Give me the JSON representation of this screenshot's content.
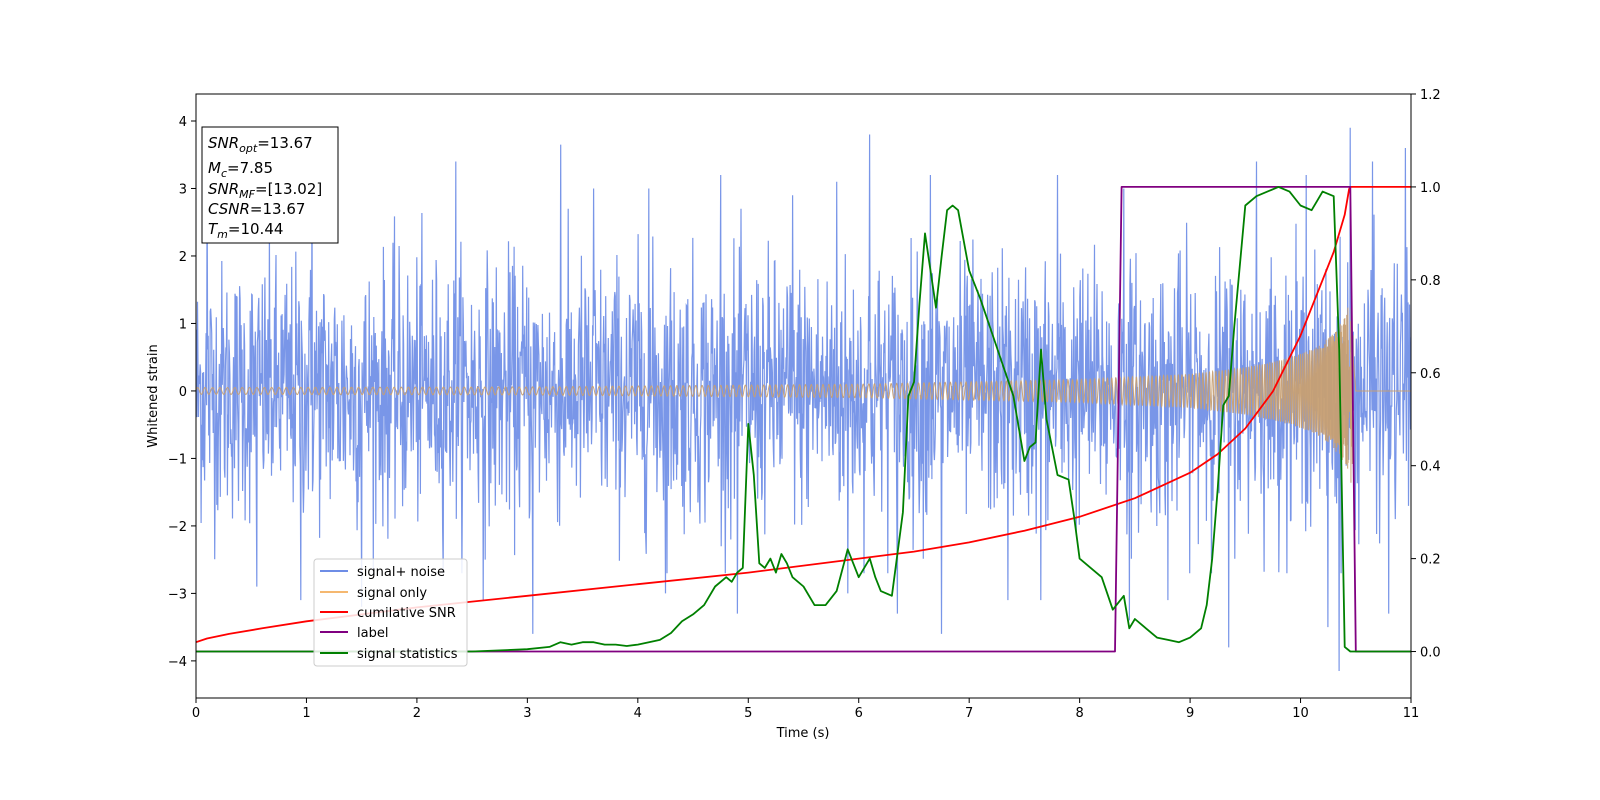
{
  "chart_data": {
    "type": "line",
    "xlabel": "Time (s)",
    "ylabel_left": "Whitened strain",
    "ylabel_right": "",
    "xlim": [
      0,
      11
    ],
    "ylim_left": [
      -4.55,
      4.4
    ],
    "ylim_right": [
      -0.1,
      1.2
    ],
    "x_ticks": [
      0,
      1,
      2,
      3,
      4,
      5,
      6,
      7,
      8,
      9,
      10,
      11
    ],
    "y_left_ticks": [
      -4,
      -3,
      -2,
      -1,
      0,
      1,
      2,
      3,
      4
    ],
    "y_right_ticks": [
      0.0,
      0.2,
      0.4,
      0.6,
      0.8,
      1.0,
      1.2
    ],
    "grid": false,
    "legend_position": "lower-left",
    "colors": {
      "signal_noise": "#6e8de6",
      "signal_only": "#c79f72",
      "cumulative_snr": "#ff0000",
      "label": "#800080",
      "signal_statistics": "#008000"
    },
    "info_box": [
      {
        "base": "SNR",
        "sub": "opt",
        "rest": "=13.67"
      },
      {
        "base": "M",
        "sub": "c",
        "rest": "=7.85"
      },
      {
        "base": "SNR",
        "sub": "MF",
        "rest": "=[13.02]"
      },
      {
        "base": "CSNR",
        "sub": "",
        "rest": "=13.67"
      },
      {
        "base": "T",
        "sub": "m",
        "rest": "=10.44"
      }
    ],
    "series": [
      {
        "name": "signal+ noise",
        "axis": "left",
        "color": "#6e8de6",
        "note_rendering": "dense whitened noise, roughly ±2 envelope with spikes up to ±3.9",
        "spikes": [
          [
            0.1,
            3.3
          ],
          [
            0.55,
            -2.9
          ],
          [
            0.95,
            -3.1
          ],
          [
            1.05,
            3.2
          ],
          [
            1.5,
            -3.2
          ],
          [
            2.35,
            3.4
          ],
          [
            2.6,
            -3.1
          ],
          [
            3.05,
            -3.6
          ],
          [
            3.3,
            3.65
          ],
          [
            3.6,
            3.0
          ],
          [
            4.1,
            3.0
          ],
          [
            4.25,
            -3.0
          ],
          [
            4.75,
            3.2
          ],
          [
            4.9,
            -3.3
          ],
          [
            5.4,
            2.9
          ],
          [
            5.8,
            3.1
          ],
          [
            5.9,
            -3.0
          ],
          [
            6.1,
            3.8
          ],
          [
            6.35,
            -3.3
          ],
          [
            6.65,
            3.2
          ],
          [
            6.75,
            -3.6
          ],
          [
            7.35,
            -3.1
          ],
          [
            7.65,
            -3.1
          ],
          [
            7.8,
            3.2
          ],
          [
            8.4,
            3.0
          ],
          [
            8.45,
            -3.4
          ],
          [
            8.8,
            -3.1
          ],
          [
            9.35,
            -3.8
          ],
          [
            9.6,
            3.4
          ],
          [
            10.05,
            3.2
          ],
          [
            10.25,
            -3.5
          ],
          [
            10.35,
            -4.15
          ],
          [
            10.45,
            3.9
          ],
          [
            10.65,
            3.4
          ],
          [
            10.8,
            -3.3
          ],
          [
            10.95,
            3.6
          ]
        ]
      },
      {
        "name": "signal only",
        "axis": "left",
        "color": "#c79f72",
        "envelope": [
          [
            0,
            0.05
          ],
          [
            3,
            0.06
          ],
          [
            6,
            0.1
          ],
          [
            8,
            0.17
          ],
          [
            9,
            0.25
          ],
          [
            9.5,
            0.35
          ],
          [
            9.8,
            0.45
          ],
          [
            10.0,
            0.55
          ],
          [
            10.15,
            0.65
          ],
          [
            10.3,
            0.85
          ],
          [
            10.4,
            1.1
          ],
          [
            10.46,
            1.4
          ],
          [
            10.5,
            0.0
          ],
          [
            11,
            0.0
          ]
        ]
      },
      {
        "name": "cumilative SNR",
        "axis": "right",
        "color": "#ff0000",
        "x": [
          0,
          0.1,
          0.3,
          0.6,
          1,
          1.5,
          2,
          3,
          4,
          5,
          6,
          6.5,
          7,
          7.5,
          8,
          8.5,
          9,
          9.25,
          9.5,
          9.75,
          10,
          10.15,
          10.3,
          10.4,
          10.44,
          10.45,
          11
        ],
        "y": [
          0.02,
          0.028,
          0.038,
          0.05,
          0.065,
          0.08,
          0.095,
          0.12,
          0.145,
          0.17,
          0.2,
          0.215,
          0.235,
          0.26,
          0.29,
          0.33,
          0.385,
          0.425,
          0.48,
          0.56,
          0.68,
          0.77,
          0.86,
          0.94,
          0.995,
          1.0,
          1.0
        ]
      },
      {
        "name": "label",
        "axis": "right",
        "color": "#800080",
        "x": [
          0,
          8.32,
          8.38,
          10.45,
          10.5,
          11
        ],
        "y": [
          0,
          0,
          1,
          1,
          0,
          0
        ]
      },
      {
        "name": "signal statistics",
        "axis": "right",
        "color": "#008000",
        "x": [
          0,
          1,
          2,
          2.5,
          3,
          3.2,
          3.3,
          3.4,
          3.5,
          3.6,
          3.7,
          3.8,
          3.9,
          4.0,
          4.1,
          4.2,
          4.3,
          4.4,
          4.5,
          4.6,
          4.7,
          4.8,
          4.85,
          4.9,
          4.95,
          5.0,
          5.05,
          5.1,
          5.15,
          5.2,
          5.25,
          5.3,
          5.35,
          5.4,
          5.5,
          5.6,
          5.7,
          5.8,
          5.9,
          6.0,
          6.1,
          6.15,
          6.2,
          6.3,
          6.4,
          6.45,
          6.5,
          6.55,
          6.6,
          6.7,
          6.75,
          6.8,
          6.85,
          6.9,
          7.0,
          7.1,
          7.2,
          7.3,
          7.4,
          7.5,
          7.55,
          7.6,
          7.65,
          7.7,
          7.8,
          7.9,
          7.95,
          8.0,
          8.1,
          8.2,
          8.3,
          8.4,
          8.45,
          8.5,
          8.6,
          8.7,
          8.8,
          8.9,
          9.0,
          9.1,
          9.15,
          9.2,
          9.25,
          9.3,
          9.35,
          9.4,
          9.5,
          9.6,
          9.7,
          9.8,
          9.9,
          10.0,
          10.1,
          10.15,
          10.2,
          10.3,
          10.35,
          10.4,
          10.45,
          10.5,
          10.7,
          11
        ],
        "y": [
          0.0,
          0.0,
          0.0,
          0.0,
          0.005,
          0.01,
          0.02,
          0.015,
          0.02,
          0.02,
          0.015,
          0.015,
          0.012,
          0.015,
          0.02,
          0.025,
          0.04,
          0.065,
          0.08,
          0.1,
          0.14,
          0.16,
          0.15,
          0.17,
          0.18,
          0.49,
          0.38,
          0.19,
          0.18,
          0.2,
          0.17,
          0.21,
          0.19,
          0.16,
          0.14,
          0.1,
          0.1,
          0.13,
          0.22,
          0.16,
          0.2,
          0.16,
          0.13,
          0.12,
          0.3,
          0.55,
          0.58,
          0.75,
          0.9,
          0.74,
          0.85,
          0.95,
          0.96,
          0.95,
          0.82,
          0.76,
          0.69,
          0.62,
          0.55,
          0.41,
          0.44,
          0.45,
          0.65,
          0.5,
          0.38,
          0.37,
          0.29,
          0.2,
          0.18,
          0.16,
          0.09,
          0.12,
          0.05,
          0.07,
          0.05,
          0.03,
          0.025,
          0.02,
          0.03,
          0.05,
          0.1,
          0.2,
          0.35,
          0.53,
          0.55,
          0.7,
          0.96,
          0.98,
          0.99,
          1.0,
          0.99,
          0.96,
          0.95,
          0.97,
          0.99,
          0.98,
          0.65,
          0.01,
          0.0,
          0.0,
          0.0,
          0.0
        ]
      }
    ]
  }
}
